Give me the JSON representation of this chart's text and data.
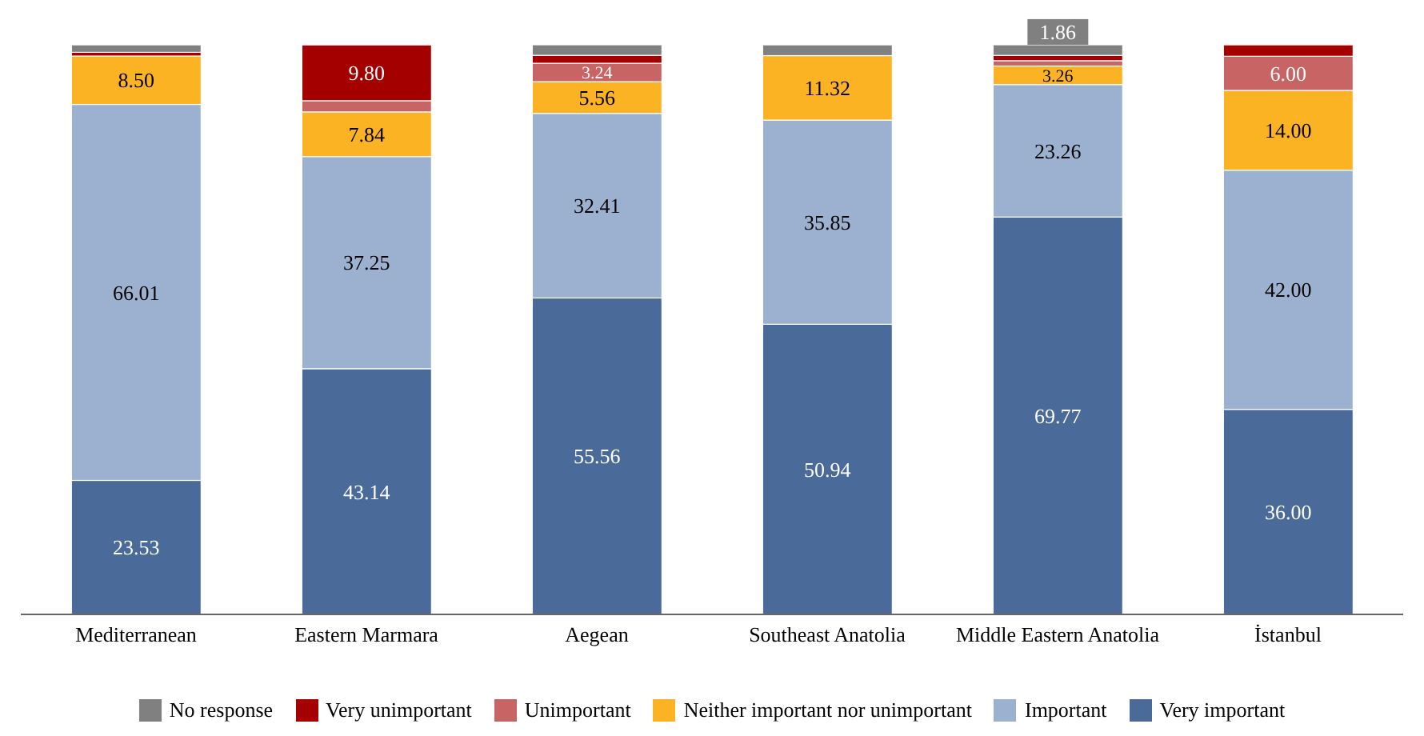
{
  "chart_data": {
    "type": "bar",
    "stacked": true,
    "categories": [
      "Mediterranean",
      "Eastern Marmara",
      "Aegean",
      "Southeast Anatolia",
      "Middle Eastern Anatolia",
      "İstanbul"
    ],
    "series": [
      {
        "name": "Very important",
        "color": "#4a6a9a",
        "values": [
          23.53,
          43.14,
          55.56,
          50.94,
          69.77,
          36.0
        ],
        "value_labels": [
          "23.53",
          "43.14",
          "55.56",
          "50.94",
          "69.77",
          "36.00"
        ]
      },
      {
        "name": "Important",
        "color": "#9cb0cf",
        "values": [
          66.01,
          37.25,
          32.41,
          35.85,
          23.26,
          42.0
        ],
        "value_labels": [
          "66.01",
          "37.25",
          "32.41",
          "35.85",
          "23.26",
          "42.00"
        ]
      },
      {
        "name": "Neither important nor unimportant",
        "color": "#fbb324",
        "values": [
          8.5,
          7.84,
          5.56,
          11.32,
          3.26,
          14.0
        ],
        "value_labels": [
          "8.50",
          "7.84",
          "5.56",
          "11.32",
          "3.26",
          "14.00"
        ]
      },
      {
        "name": "Unimportant",
        "color": "#c96464",
        "values": [
          0,
          1.96,
          3.24,
          0,
          0.93,
          6.0
        ],
        "value_labels": [
          null,
          null,
          "3.24",
          null,
          null,
          "6.00"
        ]
      },
      {
        "name": "Very unimportant",
        "color": "#a50000",
        "values": [
          0.65,
          9.8,
          1.39,
          0,
          0.93,
          2.0
        ],
        "value_labels": [
          null,
          "9.80",
          null,
          null,
          null,
          null
        ]
      },
      {
        "name": "No response",
        "color": "#808080",
        "values": [
          1.31,
          0,
          1.85,
          1.89,
          1.86,
          0
        ],
        "value_labels": [
          null,
          null,
          null,
          null,
          "1.86",
          null
        ]
      }
    ],
    "ylim": [
      0,
      100
    ],
    "tick_labels": "x",
    "grid": false,
    "legend": "bottom"
  }
}
